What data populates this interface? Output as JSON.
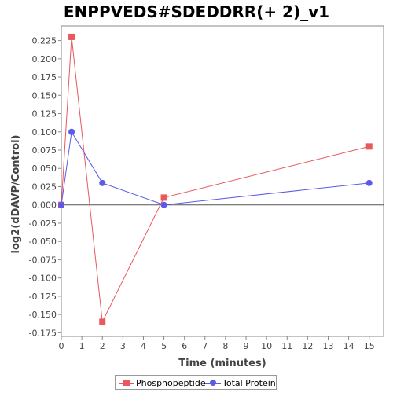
{
  "chart_data": {
    "type": "line",
    "title": "ENPPVEDS#SDEDDRR(+ 2)_v1",
    "xlabel": "Time (minutes)",
    "ylabel": "log2(dDAVP/Control)",
    "xlim": [
      0,
      15.7
    ],
    "ylim": [
      -0.18,
      0.245
    ],
    "xticks": [
      0,
      1,
      2,
      3,
      4,
      5,
      6,
      7,
      8,
      9,
      10,
      11,
      12,
      13,
      14,
      15
    ],
    "yticks": [
      -0.175,
      -0.15,
      -0.125,
      -0.1,
      -0.075,
      -0.05,
      -0.025,
      0.0,
      0.025,
      0.05,
      0.075,
      0.1,
      0.125,
      0.15,
      0.175,
      0.2,
      0.225
    ],
    "ytick_labels": [
      "-0.175",
      "-0.150",
      "-0.125",
      "-0.100",
      "-0.075",
      "-0.050",
      "-0.025",
      "0.000",
      "0.025",
      "0.050",
      "0.075",
      "0.100",
      "0.125",
      "0.150",
      "0.175",
      "0.200",
      "0.225"
    ],
    "grid": false,
    "legend_position": "bottom",
    "series": [
      {
        "name": "Phosphopeptide",
        "color": "#e8585c",
        "marker": "square",
        "x": [
          0,
          0.5,
          2,
          5,
          15
        ],
        "y": [
          0.0,
          0.23,
          -0.16,
          0.01,
          0.08
        ]
      },
      {
        "name": "Total Protein",
        "color": "#5b5bea",
        "marker": "circle",
        "x": [
          0,
          0.5,
          2,
          5,
          15
        ],
        "y": [
          0.0,
          0.1,
          0.03,
          0.0,
          0.03
        ]
      }
    ]
  }
}
